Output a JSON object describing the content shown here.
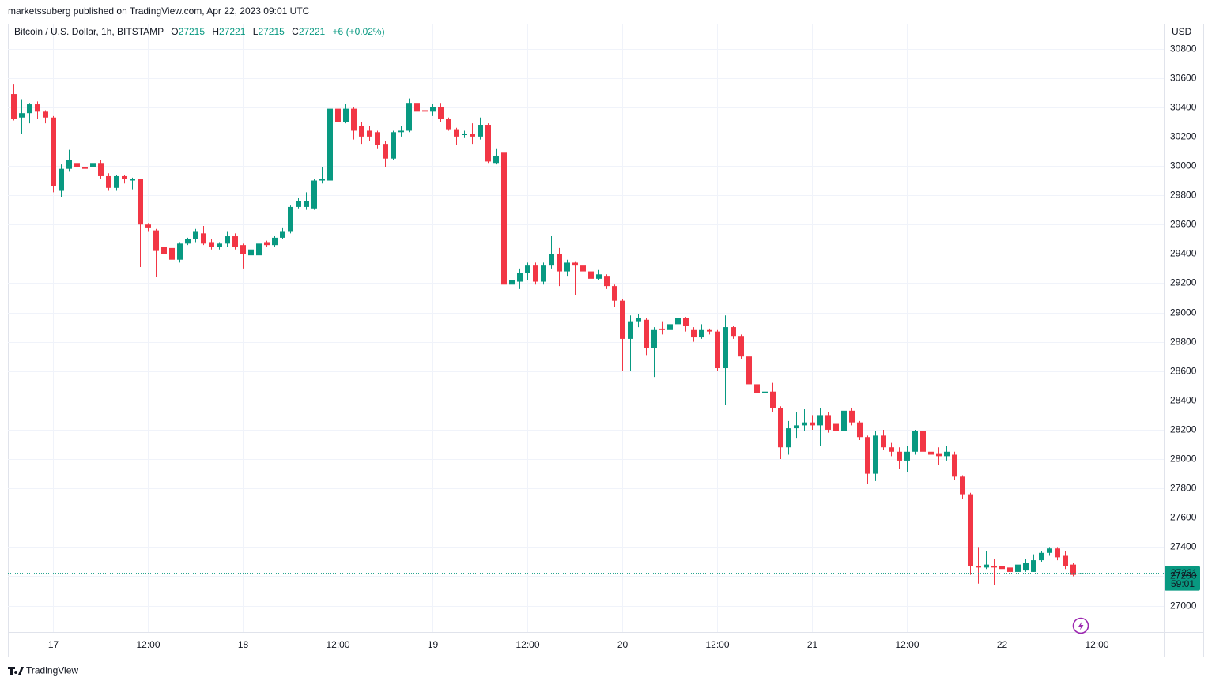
{
  "header": {
    "published": "marketssuberg published on TradingView.com, Apr 22, 2023 09:01 UTC"
  },
  "footer": {
    "brand": "TradingView"
  },
  "chart_data": {
    "type": "candlestick",
    "title": "Bitcoin / U.S. Dollar, 1h, BITSTAMP",
    "ohlc_labels": [
      "O",
      "H",
      "L",
      "C"
    ],
    "change_label": "+6 (+0.02%)",
    "currency": "USD",
    "countdown": "59:01",
    "up_color": "#089981",
    "down_color": "#f23645",
    "grid": true,
    "ylim": [
      26820,
      30970
    ],
    "yticks": [
      27000,
      27200,
      27400,
      27600,
      27800,
      28000,
      28200,
      28400,
      28600,
      28800,
      29000,
      29200,
      29400,
      29600,
      29800,
      30000,
      30200,
      30400,
      30600,
      30800
    ],
    "xlim": [
      -0.7,
      145.5
    ],
    "xticks": [
      {
        "value": 5,
        "label": "17"
      },
      {
        "value": 17,
        "label": "12:00"
      },
      {
        "value": 29,
        "label": "18"
      },
      {
        "value": 41,
        "label": "12:00"
      },
      {
        "value": 53,
        "label": "19"
      },
      {
        "value": 65,
        "label": "12:00"
      },
      {
        "value": 77,
        "label": "20"
      },
      {
        "value": 89,
        "label": "12:00"
      },
      {
        "value": 101,
        "label": "21"
      },
      {
        "value": 113,
        "label": "12:00"
      },
      {
        "value": 125,
        "label": "22"
      },
      {
        "value": 137,
        "label": "12:00"
      }
    ],
    "open": [
      30490,
      30330,
      30360,
      30420,
      30370,
      30330,
      29830,
      29980,
      30020,
      29990,
      29990,
      30020,
      29930,
      29850,
      29930,
      29900,
      29910,
      29600,
      29560,
      29450,
      29440,
      29360,
      29470,
      29500,
      29540,
      29480,
      29450,
      29470,
      29520,
      29460,
      29390,
      29390,
      29480,
      29460,
      29510,
      29550,
      29720,
      29720,
      29710,
      29900,
      29900,
      30390,
      30300,
      30390,
      30270,
      30240,
      30230,
      30150,
      30050,
      30230,
      30240,
      30430,
      30380,
      30370,
      30400,
      30320,
      30250,
      30210,
      30220,
      30200,
      30280,
      30020,
      30090,
      29190,
      29210,
      29270,
      29320,
      29210,
      29320,
      29400,
      29280,
      29340,
      29320,
      29280,
      29230,
      29250,
      29180,
      29080,
      28820,
      28940,
      28950,
      28760,
      28890,
      28880,
      28920,
      28960,
      28880,
      28830,
      28880,
      28870,
      28620,
      28900,
      28840,
      28700,
      28510,
      28450,
      28460,
      28350,
      28080,
      28210,
      28230,
      28250,
      28230,
      28300,
      28240,
      28190,
      28330,
      28250,
      28150,
      27900,
      28160,
      28080,
      28050,
      27990,
      28050,
      28190,
      28050,
      28040,
      28020,
      28030,
      27880,
      27760,
      27270,
      27260,
      27270,
      27270,
      27260,
      27230,
      27240,
      27230,
      27310,
      27360,
      27390,
      27340,
      27280,
      27215
    ],
    "high": [
      30560,
      30455,
      30430,
      30440,
      30380,
      30340,
      30010,
      30110,
      30040,
      30000,
      30030,
      30040,
      29950,
      29940,
      29940,
      29920,
      29910,
      29610,
      29570,
      29480,
      29450,
      29480,
      29510,
      29570,
      29590,
      29500,
      29480,
      29550,
      29540,
      29470,
      29440,
      29480,
      29490,
      29520,
      29580,
      29730,
      29780,
      29820,
      29910,
      29990,
      30400,
      30480,
      30420,
      30400,
      30300,
      30270,
      30240,
      30170,
      30240,
      30270,
      30460,
      30440,
      30400,
      30420,
      30430,
      30330,
      30260,
      30240,
      30290,
      30330,
      30290,
      30120,
      30100,
      29330,
      29300,
      29340,
      29340,
      29340,
      29520,
      29440,
      29360,
      29350,
      29370,
      29360,
      29290,
      29260,
      29190,
      29090,
      28980,
      28990,
      28960,
      28900,
      28940,
      28940,
      29080,
      28970,
      28900,
      28920,
      28890,
      28880,
      28980,
      28910,
      28850,
      28710,
      28620,
      28580,
      28520,
      28360,
      28260,
      28320,
      28340,
      28300,
      28350,
      28320,
      28260,
      28340,
      28350,
      28260,
      28160,
      28190,
      28200,
      28110,
      28080,
      28090,
      28200,
      28280,
      28150,
      28080,
      28090,
      28050,
      27890,
      27770,
      27400,
      27370,
      27320,
      27320,
      27290,
      27300,
      27320,
      27350,
      27370,
      27400,
      27400,
      27370,
      27290,
      27221
    ],
    "low": [
      30310,
      30220,
      30290,
      30320,
      30290,
      29820,
      29790,
      29960,
      29960,
      29950,
      29970,
      29910,
      29830,
      29830,
      29880,
      29840,
      29310,
      29550,
      29240,
      29330,
      29250,
      29340,
      29460,
      29480,
      29460,
      29430,
      29430,
      29450,
      29430,
      29300,
      29120,
      29380,
      29450,
      29450,
      29500,
      29540,
      29710,
      29700,
      29700,
      29880,
      29880,
      30290,
      30290,
      30180,
      30150,
      30170,
      30120,
      29990,
      30040,
      30200,
      30230,
      30360,
      30340,
      30340,
      30300,
      30240,
      30140,
      30190,
      30150,
      30180,
      30020,
      30010,
      29000,
      29060,
      29160,
      29220,
      29190,
      29190,
      29300,
      29180,
      29250,
      29120,
      29260,
      29210,
      29220,
      29160,
      29040,
      28600,
      28600,
      28900,
      28710,
      28560,
      28850,
      28840,
      28900,
      28870,
      28800,
      28820,
      28850,
      28600,
      28370,
      28820,
      28680,
      28480,
      28350,
      28410,
      28320,
      28000,
      28030,
      28140,
      28190,
      28200,
      28090,
      28180,
      28150,
      28180,
      28230,
      28130,
      27830,
      27850,
      28060,
      28020,
      27930,
      27910,
      28030,
      28020,
      28000,
      27960,
      27990,
      27860,
      27730,
      27210,
      27150,
      27250,
      27140,
      27230,
      27200,
      27130,
      27230,
      27230,
      27300,
      27340,
      27310,
      27250,
      27200,
      27215
    ],
    "close": [
      30320,
      30360,
      30420,
      30370,
      30330,
      29860,
      29980,
      30040,
      29990,
      29980,
      30020,
      29930,
      29850,
      29930,
      29910,
      29910,
      29600,
      29580,
      29420,
      29400,
      29360,
      29470,
      29500,
      29550,
      29470,
      29450,
      29470,
      29520,
      29450,
      29400,
      29430,
      29470,
      29460,
      29510,
      29550,
      29720,
      29760,
      29760,
      29900,
      29910,
      30390,
      30300,
      30390,
      30240,
      30200,
      30200,
      30140,
      30050,
      30230,
      30240,
      30430,
      30370,
      30370,
      30400,
      30320,
      30250,
      30200,
      30220,
      30200,
      30280,
      30030,
      30070,
      29190,
      29220,
      29270,
      29320,
      29210,
      29320,
      29400,
      29280,
      29340,
      29320,
      29280,
      29230,
      29260,
      29180,
      29080,
      28820,
      28940,
      28960,
      28760,
      28880,
      28880,
      28920,
      28960,
      28910,
      28830,
      28880,
      28870,
      28620,
      28900,
      28840,
      28700,
      28510,
      28450,
      28460,
      28350,
      28080,
      28210,
      28230,
      28250,
      28230,
      28300,
      28200,
      28190,
      28330,
      28250,
      28150,
      27900,
      28160,
      28080,
      28050,
      27990,
      28050,
      28190,
      28050,
      28030,
      28020,
      28050,
      27880,
      27760,
      27270,
      27260,
      27280,
      27260,
      27250,
      27230,
      27280,
      27290,
      27310,
      27360,
      27390,
      27330,
      27270,
      27210,
      27221
    ]
  }
}
